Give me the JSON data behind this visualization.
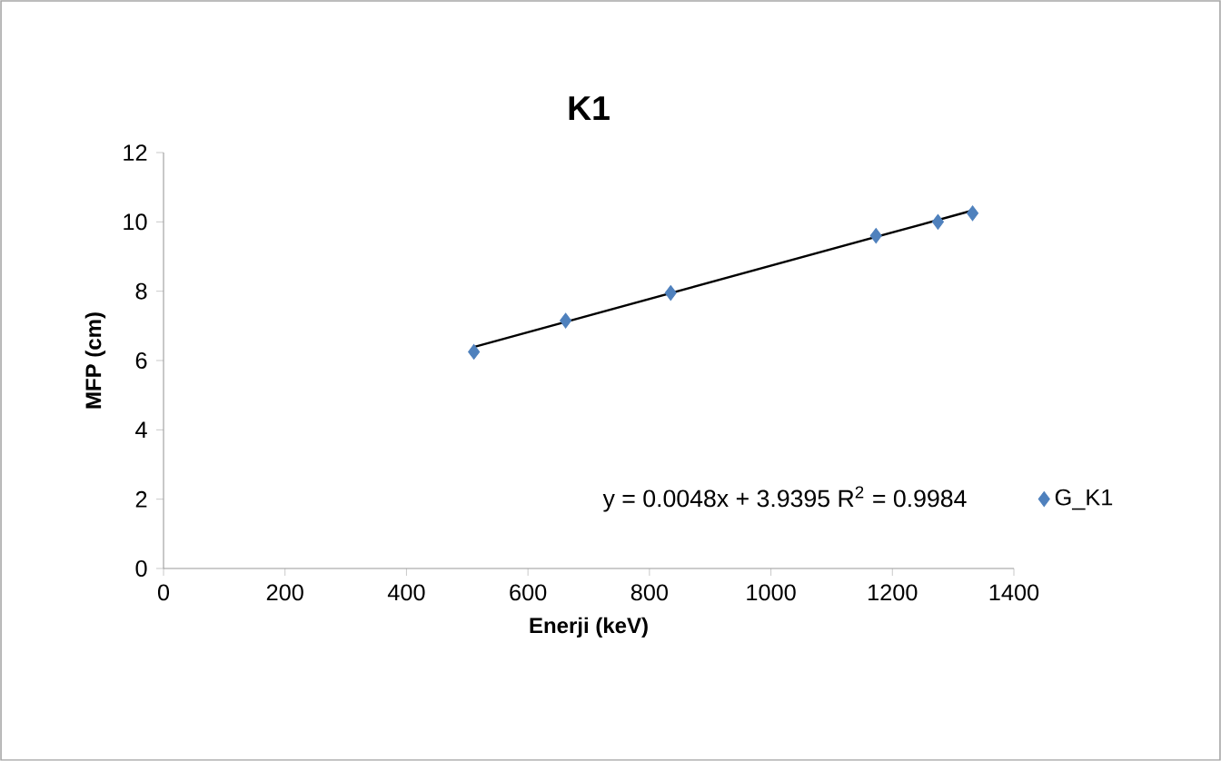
{
  "chart_data": {
    "type": "scatter",
    "title": "K1",
    "xlabel": "Enerji (keV)",
    "ylabel": "MFP (cm)",
    "series": [
      {
        "name": "G_K1",
        "color": "#4f81bd",
        "marker": "diamond",
        "x": [
          511,
          662,
          835,
          1173,
          1275,
          1332
        ],
        "values": [
          6.25,
          7.15,
          7.95,
          9.6,
          10.0,
          10.25
        ]
      },
      {
        "type": "line",
        "color": "#000000",
        "marker": "none",
        "x": [
          511,
          1332
        ],
        "values": [
          6.39,
          10.33
        ]
      }
    ],
    "annotations": [
      "y = 0.0048x + 3.9395 R$^{2}$ = 0.9984"
    ],
    "xlim": [
      0,
      1400
    ],
    "ylim": [
      0,
      12
    ],
    "xticks": [
      0,
      200,
      400,
      600,
      800,
      1000,
      1200,
      1400
    ],
    "yticks": [
      0,
      2,
      4,
      6,
      8,
      10,
      12
    ],
    "grid": false,
    "legend": "right"
  }
}
